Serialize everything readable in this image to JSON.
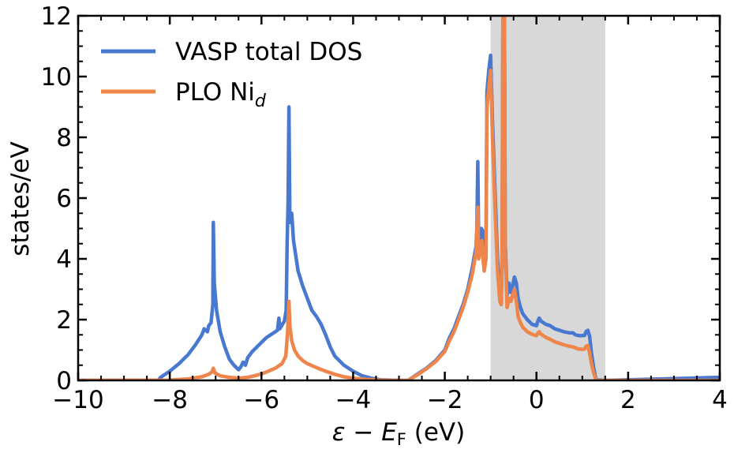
{
  "chart_data": {
    "type": "line",
    "title": "",
    "xlabel": "ε − E_F (eV)",
    "xlabel_parts": {
      "main": "ε − E",
      "sub": "F",
      "tail": " (eV)"
    },
    "ylabel": "states/eV",
    "xlim": [
      -10,
      4
    ],
    "ylim": [
      0,
      12
    ],
    "xticks": [
      -10,
      -8,
      -6,
      -4,
      -2,
      0,
      2,
      4
    ],
    "xtick_labels": [
      "−10",
      "−8",
      "−6",
      "−4",
      "−2",
      "0",
      "2",
      "4"
    ],
    "yticks": [
      0,
      2,
      4,
      6,
      8,
      10,
      12
    ],
    "ytick_labels": [
      "0",
      "2",
      "4",
      "6",
      "8",
      "10",
      "12"
    ],
    "x_minor_step": 0.5,
    "y_minor_step": 0.5,
    "grid": false,
    "legend_position": "top-left",
    "shaded_region": {
      "x": [
        -1.0,
        1.5
      ],
      "color": "#d8d8d8"
    },
    "series": [
      {
        "name": "VASP total DOS",
        "legend_main": "VASP total DOS",
        "legend_sub": "",
        "color": "#4878cf",
        "points": [
          [
            -10,
            0
          ],
          [
            -8.25,
            0
          ],
          [
            -8.2,
            0.1
          ],
          [
            -8.0,
            0.3
          ],
          [
            -7.8,
            0.55
          ],
          [
            -7.6,
            0.85
          ],
          [
            -7.45,
            1.15
          ],
          [
            -7.3,
            1.5
          ],
          [
            -7.25,
            1.7
          ],
          [
            -7.18,
            1.6
          ],
          [
            -7.15,
            1.8
          ],
          [
            -7.1,
            1.9
          ],
          [
            -7.06,
            2.5
          ],
          [
            -7.05,
            5.2
          ],
          [
            -7.03,
            3.2
          ],
          [
            -6.98,
            2.3
          ],
          [
            -6.9,
            1.6
          ],
          [
            -6.8,
            1.1
          ],
          [
            -6.7,
            0.7
          ],
          [
            -6.6,
            0.5
          ],
          [
            -6.5,
            0.35
          ],
          [
            -6.45,
            0.45
          ],
          [
            -6.4,
            0.6
          ],
          [
            -6.35,
            0.5
          ],
          [
            -6.3,
            0.75
          ],
          [
            -6.2,
            0.95
          ],
          [
            -6.1,
            1.1
          ],
          [
            -6.0,
            1.25
          ],
          [
            -5.9,
            1.4
          ],
          [
            -5.8,
            1.5
          ],
          [
            -5.65,
            1.65
          ],
          [
            -5.62,
            2.05
          ],
          [
            -5.6,
            1.7
          ],
          [
            -5.5,
            1.95
          ],
          [
            -5.46,
            2.3
          ],
          [
            -5.44,
            4.5
          ],
          [
            -5.42,
            5.8
          ],
          [
            -5.4,
            9.0
          ],
          [
            -5.38,
            5.2
          ],
          [
            -5.34,
            5.5
          ],
          [
            -5.3,
            4.6
          ],
          [
            -5.2,
            3.6
          ],
          [
            -5.1,
            3.1
          ],
          [
            -5.0,
            2.7
          ],
          [
            -4.9,
            2.3
          ],
          [
            -4.8,
            2.1
          ],
          [
            -4.7,
            1.85
          ],
          [
            -4.6,
            1.5
          ],
          [
            -4.5,
            1.1
          ],
          [
            -4.4,
            0.8
          ],
          [
            -4.2,
            0.5
          ],
          [
            -4.0,
            0.3
          ],
          [
            -3.8,
            0.15
          ],
          [
            -3.6,
            0.07
          ],
          [
            -3.4,
            0.02
          ],
          [
            -3.0,
            0
          ],
          [
            -2.8,
            0
          ],
          [
            -2.6,
            0.2
          ],
          [
            -2.4,
            0.4
          ],
          [
            -2.2,
            0.65
          ],
          [
            -2.0,
            1.0
          ],
          [
            -1.9,
            1.4
          ],
          [
            -1.8,
            1.7
          ],
          [
            -1.7,
            2.1
          ],
          [
            -1.6,
            2.5
          ],
          [
            -1.5,
            3.0
          ],
          [
            -1.4,
            3.7
          ],
          [
            -1.32,
            4.4
          ],
          [
            -1.3,
            5.0
          ],
          [
            -1.28,
            7.2
          ],
          [
            -1.26,
            4.5
          ],
          [
            -1.22,
            4.6
          ],
          [
            -1.2,
            5.0
          ],
          [
            -1.17,
            4.9
          ],
          [
            -1.14,
            4.3
          ],
          [
            -1.1,
            4.5
          ],
          [
            -1.08,
            9.5
          ],
          [
            -1.04,
            10.2
          ],
          [
            -1.0,
            10.7
          ],
          [
            -0.96,
            8.5
          ],
          [
            -0.9,
            6.0
          ],
          [
            -0.85,
            4.0
          ],
          [
            -0.8,
            2.8
          ],
          [
            -0.77,
            2.5
          ],
          [
            -0.75,
            4.0
          ],
          [
            -0.73,
            12.5
          ],
          [
            -0.7,
            12.5
          ],
          [
            -0.68,
            4.5
          ],
          [
            -0.64,
            2.8
          ],
          [
            -0.6,
            3.2
          ],
          [
            -0.56,
            2.9
          ],
          [
            -0.52,
            3.1
          ],
          [
            -0.48,
            3.4
          ],
          [
            -0.44,
            3.2
          ],
          [
            -0.4,
            2.7
          ],
          [
            -0.35,
            2.4
          ],
          [
            -0.3,
            2.2
          ],
          [
            -0.2,
            2.0
          ],
          [
            -0.1,
            1.85
          ],
          [
            0.0,
            1.8
          ],
          [
            0.03,
            1.95
          ],
          [
            0.06,
            2.05
          ],
          [
            0.1,
            1.95
          ],
          [
            0.2,
            1.85
          ],
          [
            0.3,
            1.8
          ],
          [
            0.4,
            1.7
          ],
          [
            0.5,
            1.65
          ],
          [
            0.6,
            1.6
          ],
          [
            0.7,
            1.57
          ],
          [
            0.8,
            1.56
          ],
          [
            0.85,
            1.5
          ],
          [
            0.95,
            1.47
          ],
          [
            1.05,
            1.48
          ],
          [
            1.08,
            1.6
          ],
          [
            1.12,
            1.65
          ],
          [
            1.16,
            1.45
          ],
          [
            1.2,
            0.9
          ],
          [
            1.25,
            0.4
          ],
          [
            1.3,
            0.02
          ],
          [
            1.5,
            0.0
          ],
          [
            2.0,
            0.02
          ],
          [
            3.0,
            0.06
          ],
          [
            4.0,
            0.1
          ]
        ]
      },
      {
        "name": "PLO Ni_d",
        "legend_main": "PLO Ni",
        "legend_sub": "d",
        "color": "#ee854a",
        "points": [
          [
            -10,
            0
          ],
          [
            -8.0,
            0.01
          ],
          [
            -7.6,
            0.05
          ],
          [
            -7.3,
            0.12
          ],
          [
            -7.15,
            0.2
          ],
          [
            -7.08,
            0.28
          ],
          [
            -7.05,
            0.4
          ],
          [
            -7.02,
            0.25
          ],
          [
            -6.9,
            0.15
          ],
          [
            -6.7,
            0.1
          ],
          [
            -6.5,
            0.07
          ],
          [
            -6.3,
            0.1
          ],
          [
            -6.1,
            0.17
          ],
          [
            -5.9,
            0.27
          ],
          [
            -5.7,
            0.4
          ],
          [
            -5.55,
            0.55
          ],
          [
            -5.47,
            0.8
          ],
          [
            -5.43,
            1.6
          ],
          [
            -5.4,
            2.6
          ],
          [
            -5.38,
            1.8
          ],
          [
            -5.34,
            1.3
          ],
          [
            -5.28,
            1.0
          ],
          [
            -5.2,
            0.8
          ],
          [
            -5.1,
            0.65
          ],
          [
            -5.0,
            0.55
          ],
          [
            -4.8,
            0.42
          ],
          [
            -4.6,
            0.3
          ],
          [
            -4.4,
            0.2
          ],
          [
            -4.2,
            0.12
          ],
          [
            -4.0,
            0.07
          ],
          [
            -3.7,
            0.03
          ],
          [
            -3.4,
            0.01
          ],
          [
            -3.0,
            0
          ],
          [
            -2.8,
            0.0
          ],
          [
            -2.6,
            0.18
          ],
          [
            -2.4,
            0.38
          ],
          [
            -2.2,
            0.62
          ],
          [
            -2.0,
            0.95
          ],
          [
            -1.9,
            1.3
          ],
          [
            -1.8,
            1.6
          ],
          [
            -1.7,
            2.0
          ],
          [
            -1.6,
            2.4
          ],
          [
            -1.5,
            2.9
          ],
          [
            -1.4,
            3.5
          ],
          [
            -1.32,
            4.2
          ],
          [
            -1.28,
            5.7
          ],
          [
            -1.26,
            4.0
          ],
          [
            -1.22,
            4.3
          ],
          [
            -1.19,
            4.6
          ],
          [
            -1.16,
            3.9
          ],
          [
            -1.14,
            3.6
          ],
          [
            -1.1,
            4.0
          ],
          [
            -1.08,
            9.0
          ],
          [
            -1.04,
            9.6
          ],
          [
            -1.0,
            10.2
          ],
          [
            -0.96,
            8.0
          ],
          [
            -0.9,
            5.5
          ],
          [
            -0.85,
            3.6
          ],
          [
            -0.8,
            2.6
          ],
          [
            -0.77,
            2.5
          ],
          [
            -0.75,
            4.0
          ],
          [
            -0.73,
            12.5
          ],
          [
            -0.7,
            12.5
          ],
          [
            -0.68,
            4.2
          ],
          [
            -0.64,
            2.4
          ],
          [
            -0.6,
            2.7
          ],
          [
            -0.56,
            2.6
          ],
          [
            -0.52,
            2.8
          ],
          [
            -0.48,
            3.0
          ],
          [
            -0.44,
            2.6
          ],
          [
            -0.4,
            2.1
          ],
          [
            -0.35,
            1.9
          ],
          [
            -0.3,
            1.75
          ],
          [
            -0.2,
            1.6
          ],
          [
            -0.1,
            1.52
          ],
          [
            0.0,
            1.47
          ],
          [
            0.03,
            1.55
          ],
          [
            0.06,
            1.6
          ],
          [
            0.1,
            1.52
          ],
          [
            0.2,
            1.42
          ],
          [
            0.3,
            1.35
          ],
          [
            0.4,
            1.27
          ],
          [
            0.5,
            1.22
          ],
          [
            0.6,
            1.17
          ],
          [
            0.7,
            1.13
          ],
          [
            0.8,
            1.1
          ],
          [
            0.9,
            1.04
          ],
          [
            1.0,
            1.02
          ],
          [
            1.05,
            1.03
          ],
          [
            1.08,
            1.12
          ],
          [
            1.12,
            1.15
          ],
          [
            1.16,
            0.9
          ],
          [
            1.2,
            0.55
          ],
          [
            1.25,
            0.25
          ],
          [
            1.3,
            0.0
          ],
          [
            2.0,
            0.0
          ],
          [
            4.0,
            0.0
          ]
        ]
      }
    ]
  }
}
